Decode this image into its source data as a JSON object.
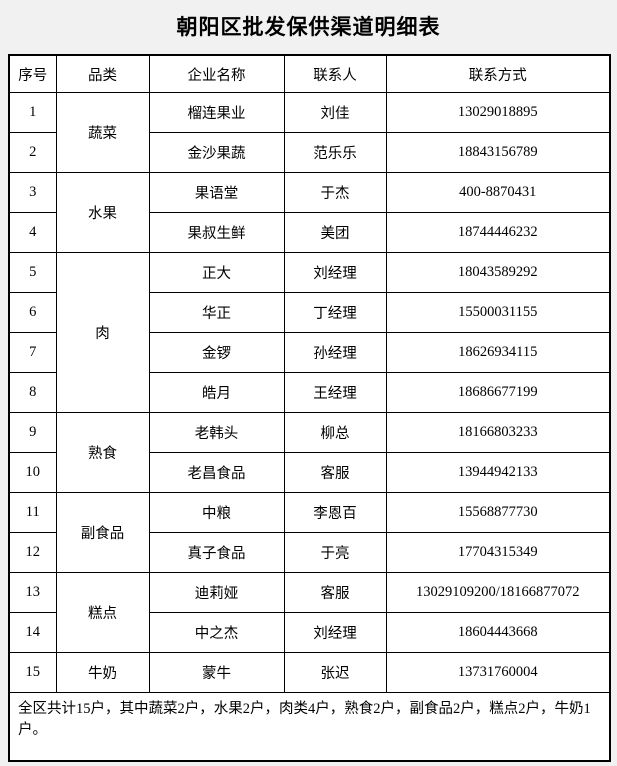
{
  "page": {
    "title": "朝阳区批发保供渠道明细表"
  },
  "colors": {
    "page_background": "#f1f1f1",
    "cell_background": "#ffffff",
    "border": "#000000",
    "text": "#000000"
  },
  "table": {
    "headers": [
      "序号",
      "品类",
      "企业名称",
      "联系人",
      "联系方式"
    ],
    "rows": [
      {
        "seq": "1",
        "category": "蔬菜",
        "category_span": 2,
        "company": "榴连果业",
        "contact": "刘佳",
        "phone": "13029018895"
      },
      {
        "seq": "2",
        "company": "金沙果蔬",
        "contact": "范乐乐",
        "phone": "18843156789"
      },
      {
        "seq": "3",
        "category": "水果",
        "category_span": 2,
        "company": "果语堂",
        "contact": "于杰",
        "phone": "400-8870431"
      },
      {
        "seq": "4",
        "company": "果叔生鲜",
        "contact": "美团",
        "phone": "18744446232"
      },
      {
        "seq": "5",
        "category": "肉",
        "category_span": 4,
        "company": "正大",
        "contact": "刘经理",
        "phone": "18043589292"
      },
      {
        "seq": "6",
        "company": "华正",
        "contact": "丁经理",
        "phone": "15500031155"
      },
      {
        "seq": "7",
        "company": "金锣",
        "contact": "孙经理",
        "phone": "18626934115"
      },
      {
        "seq": "8",
        "company": "皓月",
        "contact": "王经理",
        "phone": "18686677199"
      },
      {
        "seq": "9",
        "category": "熟食",
        "category_span": 2,
        "company": "老韩头",
        "contact": "柳总",
        "phone": "18166803233"
      },
      {
        "seq": "10",
        "company": "老昌食品",
        "contact": "客服",
        "phone": "13944942133"
      },
      {
        "seq": "11",
        "category": "副食品",
        "category_span": 2,
        "company": "中粮",
        "contact": "李恩百",
        "phone": "15568877730"
      },
      {
        "seq": "12",
        "company": "真子食品",
        "contact": "于亮",
        "phone": "17704315349"
      },
      {
        "seq": "13",
        "category": "糕点",
        "category_span": 2,
        "company": "迪莉娅",
        "contact": "客服",
        "phone": "13029109200/18166877072"
      },
      {
        "seq": "14",
        "company": "中之杰",
        "contact": "刘经理",
        "phone": "18604443668"
      },
      {
        "seq": "15",
        "category": "牛奶",
        "category_span": 1,
        "company": "蒙牛",
        "contact": "张迟",
        "phone": "13731760004"
      }
    ],
    "summary": "全区共计15户，其中蔬菜2户，水果2户，肉类4户，熟食2户，副食品2户，糕点2户，牛奶1户。"
  }
}
